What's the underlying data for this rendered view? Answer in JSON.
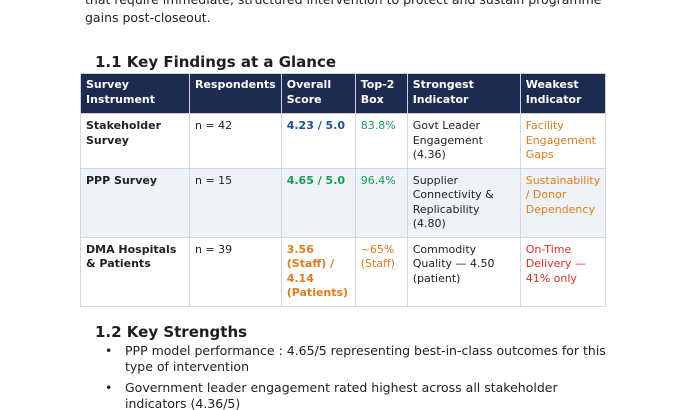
{
  "intro": {
    "lines": [
      "that require immediate, structured intervention to protect and sustain programme",
      "gains post-closeout."
    ]
  },
  "section_1": {
    "heading": "1.1 Key Findings at a Glance",
    "table": {
      "header": [
        [
          "Survey",
          "Instrument"
        ],
        [
          "Respondents"
        ],
        [
          "Overall",
          "Score"
        ],
        [
          "Top-2",
          "Box"
        ],
        [
          "Strongest",
          "Indicator"
        ],
        [
          "Weakest",
          "Indicator"
        ]
      ],
      "rows": [
        [
          {
            "lines": [
              "Stakeholder",
              "Survey"
            ]
          },
          {
            "lines": [
              "n = 42"
            ]
          },
          {
            "lines": [
              "4.23 / 5.0"
            ],
            "color": "#1f4e9a"
          },
          {
            "lines": [
              "83.8%"
            ],
            "color": "#1a9a5a"
          },
          {
            "lines": [
              "Govt Leader",
              "Engagement",
              "(4.36)"
            ]
          },
          {
            "lines": [
              "Facility",
              "Engagement",
              "Gaps"
            ],
            "color": "#e07b1f"
          }
        ],
        [
          {
            "lines": [
              "PPP Survey"
            ]
          },
          {
            "lines": [
              "n = 15"
            ]
          },
          {
            "lines": [
              "4.65 / 5.0"
            ],
            "color": "#1a9a5a"
          },
          {
            "lines": [
              "96.4%"
            ],
            "color": "#1a9a5a"
          },
          {
            "lines": [
              "Supplier",
              "Connectivity &",
              "Replicability",
              "(4.80)"
            ]
          },
          {
            "lines": [
              "Sustainability",
              "/ Donor",
              "Dependency"
            ],
            "color": "#e07b1f"
          }
        ],
        [
          {
            "lines": [
              "DMA Hospitals",
              "& Patients"
            ]
          },
          {
            "lines": [
              "n = 39"
            ]
          },
          {
            "lines": [
              "3.56",
              "(Staff) /",
              "4.14",
              "(Patients)"
            ],
            "color": "#e07b1f"
          },
          {
            "lines": [
              "~65%",
              "(Staff)"
            ],
            "color": "#e07b1f"
          },
          {
            "lines": [
              "Commodity",
              "Quality — 4.50",
              "(patient)"
            ]
          },
          {
            "lines": [
              "On-Time",
              "Delivery —",
              "41% only"
            ],
            "color": "#e03020"
          }
        ]
      ]
    }
  },
  "section_2": {
    "heading": "1.2 Key Strengths",
    "bullets": [
      {
        "lines": [
          "PPP model performance : 4.65/5 representing best-in-class outcomes for this",
          "type of intervention"
        ]
      },
      {
        "lines": [
          "Government leader engagement rated highest across all stakeholder",
          "indicators (4.36/5)"
        ]
      }
    ]
  }
}
